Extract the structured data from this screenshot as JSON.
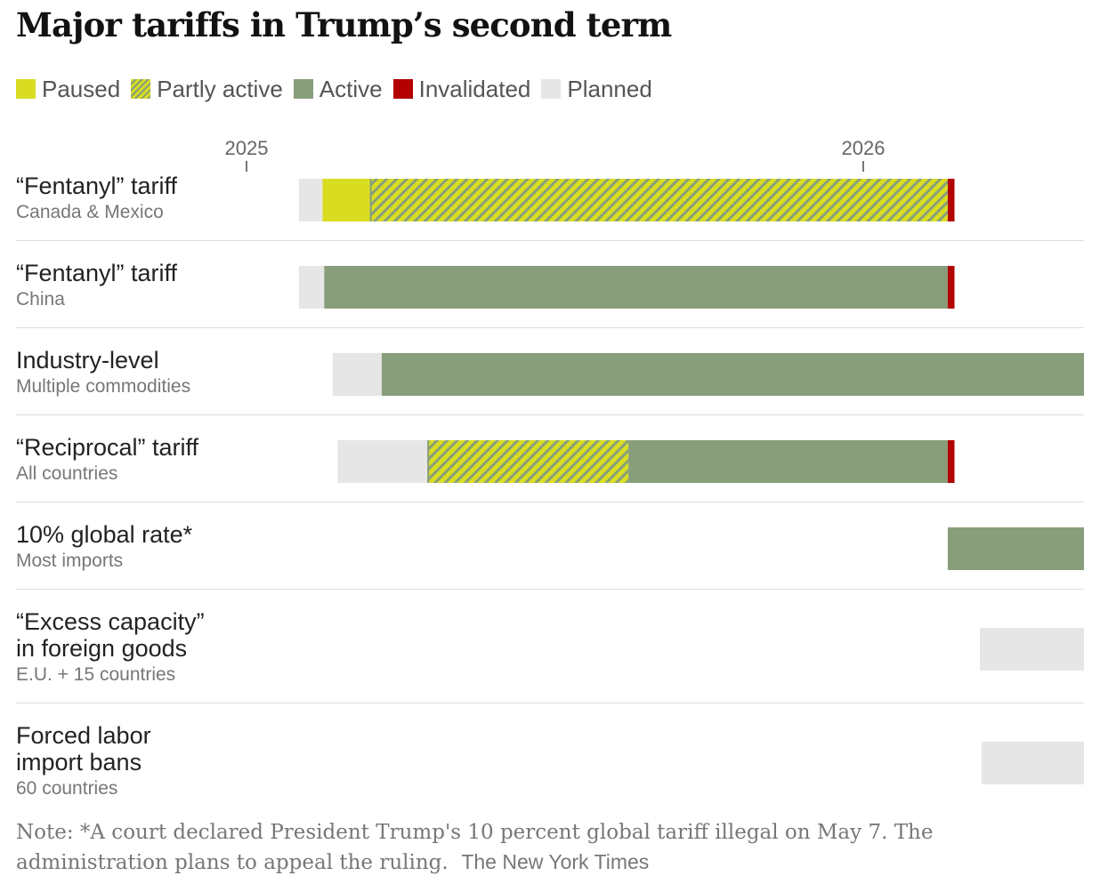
{
  "title": "Major tariffs in Trump’s second term",
  "colors": {
    "paused": "#d9dd22",
    "active": "#889e7b",
    "invalidated": "#b30000",
    "planned": "#e6e6e6",
    "partly_stripe": "#889e7b"
  },
  "legend": [
    {
      "key": "paused",
      "label": "Paused"
    },
    {
      "key": "partly",
      "label": "Partly active"
    },
    {
      "key": "active",
      "label": "Active"
    },
    {
      "key": "invalidated",
      "label": "Invalidated"
    },
    {
      "key": "planned",
      "label": "Planned"
    }
  ],
  "note": {
    "text": "Note: *A court declared President Trump's 10 percent global tariff illegal on May 7. The administration plans to appeal the ruling.",
    "credit": "The New York Times"
  },
  "chart_data": {
    "type": "bar",
    "orientation": "horizontal-timeline",
    "x_axis": {
      "unit": "date",
      "ticks": [
        {
          "label": "2025",
          "value": "2025-01-01"
        },
        {
          "label": "2026",
          "value": "2026-01-01"
        }
      ],
      "range": [
        "2025-01-01",
        "2026-06-05"
      ]
    },
    "legend_placement": "top-left",
    "grid": false,
    "rows": [
      {
        "title": "“Fentanyl” tariff",
        "subtitle": "Canada & Mexico",
        "segments": [
          {
            "status": "planned",
            "start": "2025-02-01",
            "end": "2025-02-15"
          },
          {
            "status": "paused",
            "start": "2025-02-15",
            "end": "2025-03-15"
          },
          {
            "status": "partly",
            "start": "2025-03-15",
            "end": "2026-02-20"
          },
          {
            "status": "invalidated",
            "start": "2026-02-20",
            "end": "2026-02-24"
          }
        ]
      },
      {
        "title": "“Fentanyl” tariff",
        "subtitle": "China",
        "segments": [
          {
            "status": "planned",
            "start": "2025-02-01",
            "end": "2025-02-16"
          },
          {
            "status": "active",
            "start": "2025-02-16",
            "end": "2026-02-20"
          },
          {
            "status": "invalidated",
            "start": "2026-02-20",
            "end": "2026-02-24"
          }
        ]
      },
      {
        "title": "Industry-level",
        "subtitle": "Multiple commodities",
        "segments": [
          {
            "status": "planned",
            "start": "2025-02-21",
            "end": "2025-03-22"
          },
          {
            "status": "active",
            "start": "2025-03-22",
            "end": "2026-06-05"
          }
        ]
      },
      {
        "title": "“Reciprocal” tariff",
        "subtitle": "All countries",
        "segments": [
          {
            "status": "planned",
            "start": "2025-02-24",
            "end": "2025-04-18"
          },
          {
            "status": "partly",
            "start": "2025-04-18",
            "end": "2025-08-15"
          },
          {
            "status": "active",
            "start": "2025-08-15",
            "end": "2026-02-20"
          },
          {
            "status": "invalidated",
            "start": "2026-02-20",
            "end": "2026-02-24"
          }
        ]
      },
      {
        "title": "10% global rate*",
        "subtitle": "Most imports",
        "segments": [
          {
            "status": "active",
            "start": "2026-02-20",
            "end": "2026-06-05"
          }
        ]
      },
      {
        "title": "“Excess capacity” in foreign goods",
        "title_lines": [
          "“Excess capacity”",
          "in foreign goods"
        ],
        "subtitle": "E.U. + 15 countries",
        "segments": [
          {
            "status": "planned",
            "start": "2026-03-11",
            "end": "2026-06-05"
          }
        ]
      },
      {
        "title": "Forced labor import bans",
        "title_lines": [
          "Forced labor",
          "import bans"
        ],
        "subtitle": "60 countries",
        "segments": [
          {
            "status": "planned",
            "start": "2026-03-12",
            "end": "2026-06-05"
          }
        ]
      }
    ]
  }
}
